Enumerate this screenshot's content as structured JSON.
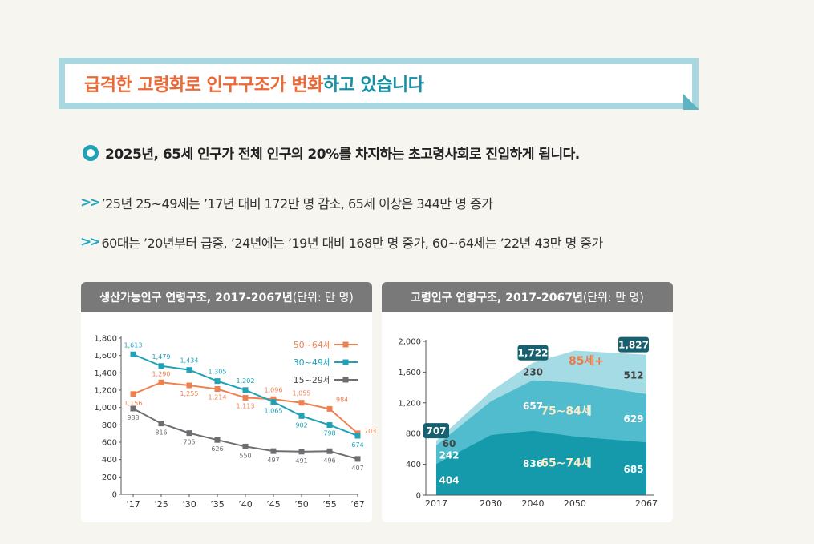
{
  "title": {
    "part1": "급격한 고령화로 인구구조가 변화",
    "part2": "하고 있습니다"
  },
  "headline": "2025년, 65세 인구가 전체 인구의 20%를 차지하는 초고령사회로 진입하게 됩니다.",
  "bullets": [
    {
      "arrow": ">>",
      "text": "’25년 25~49세는 ’17년 대비 172만 명 감소, 65세 이상은 344만 명 증가"
    },
    {
      "arrow": ">>",
      "text": "60대는 ’20년부터 급증, ’24년에는 ’19년 대비 168만 명 증가, 60~64세는 ’22년 43만 명 증가"
    }
  ],
  "colors": {
    "orange": "#ef8150",
    "teal": "#1fa2b8",
    "gray": "#6d6e71",
    "area_dark": "#149aaa",
    "area_mid": "#50bccd",
    "area_light": "#a5dbe5",
    "badge": "#17606f"
  },
  "chart_data": [
    {
      "type": "line",
      "title": "생산가능인구 연령구조, 2017-2067년",
      "unit": "(단위: 만 명)",
      "categories": [
        "’17",
        "’25",
        "’30",
        "’35",
        "’40",
        "’45",
        "’50",
        "’55",
        "’67"
      ],
      "ylim": [
        0,
        1800
      ],
      "yticks": [
        "0",
        "200",
        "400",
        "600",
        "800",
        "1,000",
        "1,200",
        "1,400",
        "1,600",
        "1,800"
      ],
      "legend_position": "top-right",
      "series": [
        {
          "name": "50~64세",
          "color": "#ef8150",
          "values": [
            1156,
            1290,
            1255,
            1214,
            1113,
            1096,
            1055,
            984,
            703
          ],
          "labels": [
            "1,156",
            "1,290",
            "1,255",
            "1,214",
            "1,113",
            "1,096",
            "1,055",
            "984",
            "703"
          ]
        },
        {
          "name": "30~49세",
          "color": "#1fa2b8",
          "values": [
            1613,
            1479,
            1434,
            1305,
            1202,
            1065,
            902,
            798,
            674
          ],
          "labels": [
            "1,613",
            "1,479",
            "1,434",
            "1,305",
            "1,202",
            "1,065",
            "902",
            "798",
            "674"
          ]
        },
        {
          "name": "15~29세",
          "color": "#6d6e71",
          "values": [
            988,
            816,
            705,
            626,
            550,
            497,
            491,
            496,
            407
          ],
          "labels": [
            "988",
            "816",
            "705",
            "626",
            "550",
            "497",
            "491",
            "496",
            "407"
          ]
        }
      ]
    },
    {
      "type": "area",
      "title": "고령인구 연령구조, 2017-2067년",
      "unit": "(단위: 만 명)",
      "x": [
        2017,
        2030,
        2040,
        2050,
        2067
      ],
      "xticks": [
        "2017",
        "2030",
        "2040",
        "2050",
        "2067"
      ],
      "ylim": [
        0,
        2000
      ],
      "yticks": [
        "0",
        "400",
        "800",
        "1,200",
        "1,600",
        "2,000"
      ],
      "stack": [
        {
          "name": "65~74세",
          "values": [
            404,
            780,
            836,
            760,
            685
          ],
          "label_values": [
            "404",
            "836",
            "685"
          ]
        },
        {
          "name": "75~84세",
          "values": [
            242,
            440,
            657,
            700,
            629
          ],
          "label_values": [
            "242",
            "657",
            "629"
          ]
        },
        {
          "name": "85세+",
          "values": [
            60,
            130,
            230,
            420,
            512
          ],
          "label_values": [
            "60",
            "230",
            "512"
          ]
        }
      ],
      "totals": [
        {
          "x": 2017,
          "label": "707"
        },
        {
          "x": 2040,
          "label": "1,722"
        },
        {
          "x": 2067,
          "label": "1,827"
        }
      ]
    }
  ]
}
